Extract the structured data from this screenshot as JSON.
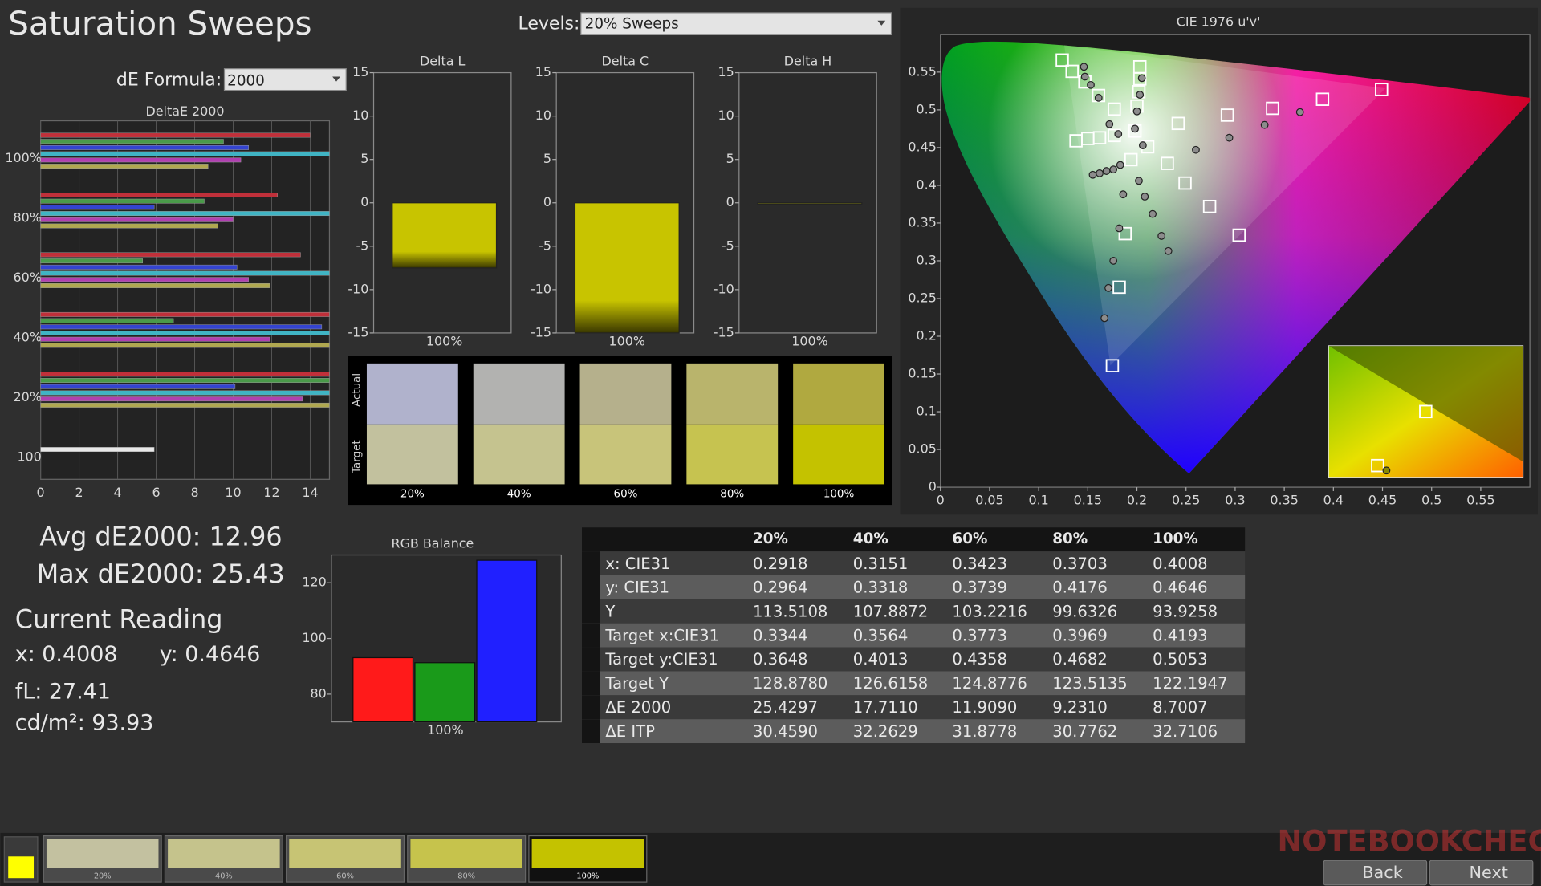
{
  "title": "Saturation Sweeps",
  "levels": {
    "label": "Levels:",
    "value": "20% Sweeps"
  },
  "de_formula": {
    "label": "dE Formula:",
    "value": "2000"
  },
  "chart_data": [
    {
      "type": "hbar",
      "title": "DeltaE 2000",
      "categories": [
        "100%",
        "80%",
        "60%",
        "40%",
        "20%",
        "100"
      ],
      "series": [
        {
          "color": "#c0303a",
          "values": [
            14,
            12.3,
            13.5,
            15,
            15,
            null
          ]
        },
        {
          "color": "#4a9a4a",
          "values": [
            9.5,
            8.5,
            5.3,
            6.9,
            15,
            null
          ]
        },
        {
          "color": "#3444d0",
          "values": [
            10.8,
            5.9,
            10.2,
            14.6,
            10.1,
            null
          ]
        },
        {
          "color": "#40b4c4",
          "values": [
            15,
            15,
            15,
            15,
            15,
            null
          ]
        },
        {
          "color": "#b040b0",
          "values": [
            10.4,
            10,
            10.8,
            11.9,
            13.6,
            null
          ]
        },
        {
          "color": "#b0a850",
          "values": [
            8.7,
            9.2,
            11.9,
            15,
            15,
            null
          ]
        },
        {
          "color": "#e8e8e8",
          "values": [
            null,
            null,
            null,
            null,
            null,
            5.9
          ]
        }
      ],
      "xlim": [
        0,
        15
      ],
      "xticks": [
        0,
        2,
        4,
        6,
        8,
        10,
        12,
        14
      ],
      "grid": true
    },
    {
      "type": "bar",
      "title": "Delta L",
      "categories": [
        "100%"
      ],
      "values": [
        -7.5
      ],
      "color": "#c8c400",
      "ylim": [
        -15,
        15
      ],
      "yticks": [
        -15,
        -10,
        -5,
        0,
        5,
        10,
        15
      ]
    },
    {
      "type": "bar",
      "title": "Delta C",
      "categories": [
        "100%"
      ],
      "values": [
        -15
      ],
      "color": "#c8c400",
      "ylim": [
        -15,
        15
      ],
      "yticks": [
        -15,
        -10,
        -5,
        0,
        5,
        10,
        15
      ]
    },
    {
      "type": "bar",
      "title": "Delta H",
      "categories": [
        "100%"
      ],
      "values": [
        0
      ],
      "color": "#c8c400",
      "ylim": [
        -15,
        15
      ],
      "yticks": [
        -15,
        -10,
        -5,
        0,
        5,
        10,
        15
      ]
    },
    {
      "type": "scatter",
      "title": "CIE 1976 u'v'",
      "xlim": [
        0,
        0.6
      ],
      "ylim": [
        0,
        0.6
      ],
      "xticks": [
        0,
        0.05,
        0.1,
        0.15,
        0.2,
        0.25,
        0.3,
        0.35,
        0.4,
        0.45,
        0.5,
        0.55
      ],
      "yticks": [
        0,
        0.05,
        0.1,
        0.15,
        0.2,
        0.25,
        0.3,
        0.35,
        0.4,
        0.45,
        0.5,
        0.55
      ],
      "series": [
        {
          "marker": "square",
          "color": "#ffffff",
          "x": [
            0.124,
            0.134,
            0.147,
            0.161,
            0.177,
            0.203,
            0.203,
            0.202,
            0.2,
            0.198,
            0.138,
            0.15,
            0.162,
            0.177,
            0.194,
            0.211,
            0.231,
            0.249,
            0.274,
            0.304,
            0.242,
            0.292,
            0.338,
            0.389,
            0.449,
            0.188,
            0.182,
            0.175
          ],
          "y": [
            0.566,
            0.551,
            0.537,
            0.519,
            0.501,
            0.557,
            0.541,
            0.524,
            0.505,
            0.472,
            0.459,
            0.462,
            0.463,
            0.466,
            0.434,
            0.451,
            0.429,
            0.403,
            0.372,
            0.334,
            0.482,
            0.493,
            0.502,
            0.514,
            0.527,
            0.336,
            0.265,
            0.161
          ]
        },
        {
          "marker": "circle",
          "color": "#8c8c8c",
          "x": [
            0.146,
            0.147,
            0.153,
            0.161,
            0.172,
            0.181,
            0.205,
            0.203,
            0.2,
            0.198,
            0.155,
            0.162,
            0.169,
            0.176,
            0.183,
            0.202,
            0.208,
            0.216,
            0.225,
            0.232,
            0.206,
            0.26,
            0.294,
            0.33,
            0.366,
            0.186,
            0.182,
            0.176,
            0.171,
            0.167
          ],
          "y": [
            0.557,
            0.544,
            0.533,
            0.516,
            0.481,
            0.468,
            0.542,
            0.52,
            0.498,
            0.475,
            0.414,
            0.416,
            0.419,
            0.421,
            0.427,
            0.406,
            0.385,
            0.362,
            0.333,
            0.313,
            0.453,
            0.447,
            0.463,
            0.48,
            0.497,
            0.388,
            0.343,
            0.3,
            0.264,
            0.224
          ]
        }
      ]
    },
    {
      "type": "groupbar",
      "title": "RGB Balance",
      "categories": [
        "100%"
      ],
      "series": [
        {
          "color": "#ff1a1a",
          "values": [
            93.1
          ]
        },
        {
          "color": "#1a9a1a",
          "values": [
            91.3
          ]
        },
        {
          "color": "#2020ff",
          "values": [
            128.1
          ]
        }
      ],
      "ylim": [
        70,
        130
      ],
      "yticks": [
        80,
        100,
        120
      ]
    }
  ],
  "swatches": {
    "actual_label": "Actual",
    "target_label": "Target",
    "items": [
      {
        "label": "20%",
        "actual": "#b0b2cc",
        "target": "#c2c19e"
      },
      {
        "label": "40%",
        "actual": "#b2b2b0",
        "target": "#c5c38f"
      },
      {
        "label": "60%",
        "actual": "#b5b08c",
        "target": "#c8c47a"
      },
      {
        "label": "80%",
        "actual": "#b9b46c",
        "target": "#c6c350"
      },
      {
        "label": "100%",
        "actual": "#b0a940",
        "target": "#c4c200"
      }
    ]
  },
  "stats": {
    "avg": "Avg dE2000: 12.96",
    "max": "Max dE2000: 25.43",
    "heading": "Current Reading",
    "x": "x: 0.4008",
    "y": "y: 0.4646",
    "fl": "fL: 27.41",
    "cdm2": "cd/m²: 93.93"
  },
  "table": {
    "header": [
      "20%",
      "40%",
      "60%",
      "80%",
      "100%"
    ],
    "rows": [
      [
        "x: CIE31",
        "0.2918",
        "0.3151",
        "0.3423",
        "0.3703",
        "0.4008"
      ],
      [
        "y: CIE31",
        "0.2964",
        "0.3318",
        "0.3739",
        "0.4176",
        "0.4646"
      ],
      [
        "Y",
        "113.5108",
        "107.8872",
        "103.2216",
        "99.6326",
        "93.9258"
      ],
      [
        "Target x:CIE31",
        "0.3344",
        "0.3564",
        "0.3773",
        "0.3969",
        "0.4193"
      ],
      [
        "Target y:CIE31",
        "0.3648",
        "0.4013",
        "0.4358",
        "0.4682",
        "0.5053"
      ],
      [
        "Target Y",
        "128.8780",
        "126.6158",
        "124.8776",
        "123.5135",
        "122.1947"
      ],
      [
        "ΔE 2000",
        "25.4297",
        "17.7110",
        "11.9090",
        "9.2310",
        "8.7007"
      ],
      [
        "ΔE ITP",
        "30.4590",
        "32.2629",
        "31.8778",
        "30.7762",
        "32.7106"
      ]
    ]
  },
  "bottom_bar": {
    "swatches": [
      {
        "label": "20%",
        "color": "#c3c1a0"
      },
      {
        "label": "40%",
        "color": "#c5c38c"
      },
      {
        "label": "60%",
        "color": "#c7c474"
      },
      {
        "label": "80%",
        "color": "#c6c34c"
      },
      {
        "label": "100%",
        "color": "#c4c200"
      }
    ],
    "buttons": [
      "Back",
      "Next"
    ]
  },
  "watermark": "NOTEBOOKCHECK"
}
